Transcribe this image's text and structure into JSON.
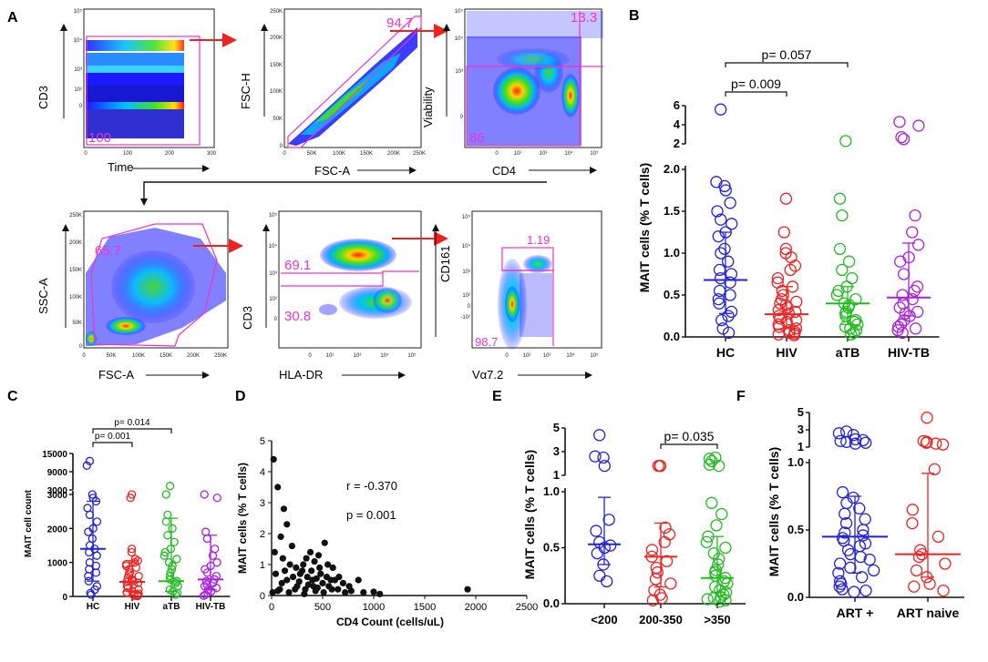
{
  "colors": {
    "hc": "#2222dd",
    "hiv": "#ee2222",
    "atb": "#22bb22",
    "hivtb": "#aa22dd",
    "gate": "#ee33cc",
    "arrow": "#ee2222"
  },
  "panel_letters": [
    "A",
    "B",
    "C",
    "D",
    "E",
    "F"
  ],
  "flow_plots": [
    {
      "id": "p1",
      "ylabel": "CD3",
      "xlabel": "Time",
      "gate_values": [
        "100"
      ],
      "yticks": [
        "10⁵",
        "10⁴",
        "10³",
        "10²",
        "0"
      ],
      "xticks": [
        "0",
        "100",
        "200",
        "300"
      ]
    },
    {
      "id": "p2",
      "ylabel": "FSC-H",
      "xlabel": "FSC-A",
      "gate_values": [
        "94.7"
      ],
      "yticks": [
        "250K",
        "200K",
        "150K",
        "100K",
        "50K",
        "0"
      ],
      "xticks": [
        "0",
        "50K",
        "100K",
        "150K",
        "200K",
        "250K"
      ]
    },
    {
      "id": "p3",
      "ylabel": "Viability",
      "xlabel": "CD4",
      "gate_values": [
        "13.3",
        "86"
      ],
      "yticks": [
        "10⁵",
        "10⁴",
        "10³",
        "0"
      ],
      "xticks": [
        "0",
        "10²",
        "10³",
        "10⁴",
        "10⁵"
      ]
    },
    {
      "id": "p4",
      "ylabel": "SSC-A",
      "xlabel": "FSC-A",
      "gate_values": [
        "65.7"
      ],
      "yticks": [
        "250K",
        "200K",
        "150K",
        "100K",
        "50K",
        "0"
      ],
      "xticks": [
        "0",
        "50K",
        "100K",
        "150K",
        "200K",
        "250K"
      ]
    },
    {
      "id": "p5",
      "ylabel": "CD3",
      "xlabel": "HLA-DR",
      "gate_values": [
        "69.1",
        "30.8"
      ],
      "yticks": [
        "10⁵",
        "10⁴",
        "10³",
        "10²",
        "0"
      ],
      "xticks": [
        "0",
        "10²",
        "10³",
        "10⁴",
        "10⁵"
      ]
    },
    {
      "id": "p6",
      "ylabel": "CD161",
      "xlabel": "Vα7.2",
      "gate_values": [
        "1.19",
        "98.7"
      ],
      "yticks": [
        "10⁵",
        "10⁴",
        "10³",
        "10²",
        "0",
        "-10²"
      ],
      "xticks": [
        "0",
        "10²",
        "10³",
        "10⁴",
        "10⁵"
      ]
    }
  ],
  "chart_data": [
    {
      "panel": "B",
      "type": "scatter",
      "ylabel": "MAIT cells (% T cells)",
      "categories": [
        "HC",
        "HIV",
        "aTB",
        "HIV-TB"
      ],
      "yticks_lower": [
        "0.0",
        "0.5",
        "1.0",
        "1.5",
        "2.0"
      ],
      "yticks_upper": [
        "2",
        "4",
        "6"
      ],
      "brackets": [
        {
          "from": "HC",
          "to": "HIV",
          "label": "p= 0.009"
        },
        {
          "from": "HC",
          "to": "aTB",
          "label": "p= 0.057"
        }
      ],
      "series": [
        {
          "name": "HC",
          "color": "#2222dd",
          "median": 0.68,
          "iqr": [
            0.28,
            1.25
          ],
          "values": [
            5.6,
            1.85,
            1.8,
            1.75,
            1.6,
            1.5,
            1.4,
            1.35,
            1.25,
            1.2,
            1.05,
            1.0,
            0.9,
            0.8,
            0.75,
            0.7,
            0.65,
            0.55,
            0.5,
            0.45,
            0.4,
            0.3,
            0.25,
            0.2,
            0.1,
            0.05
          ]
        },
        {
          "name": "HIV",
          "color": "#ee2222",
          "median": 0.27,
          "iqr": [
            0.1,
            0.6
          ],
          "values": [
            1.65,
            1.25,
            1.05,
            1.0,
            0.95,
            0.85,
            0.8,
            0.7,
            0.65,
            0.6,
            0.55,
            0.5,
            0.45,
            0.42,
            0.4,
            0.38,
            0.35,
            0.32,
            0.3,
            0.28,
            0.25,
            0.22,
            0.2,
            0.18,
            0.15,
            0.12,
            0.1,
            0.08,
            0.06,
            0.05,
            0.04,
            0.03,
            0.02
          ]
        },
        {
          "name": "aTB",
          "color": "#22bb22",
          "median": 0.4,
          "iqr": [
            0.15,
            0.6
          ],
          "values": [
            2.3,
            1.65,
            1.45,
            1.05,
            0.9,
            0.8,
            0.7,
            0.6,
            0.55,
            0.5,
            0.45,
            0.4,
            0.38,
            0.35,
            0.3,
            0.28,
            0.25,
            0.2,
            0.18,
            0.15,
            0.12,
            0.1,
            0.08,
            0.05,
            0.03
          ]
        },
        {
          "name": "HIV-TB",
          "color": "#aa22dd",
          "median": 0.47,
          "iqr": [
            0.25,
            1.12
          ],
          "values": [
            4.3,
            3.9,
            2.7,
            2.5,
            1.45,
            1.25,
            1.1,
            0.95,
            0.9,
            0.75,
            0.6,
            0.55,
            0.5,
            0.45,
            0.4,
            0.35,
            0.3,
            0.28,
            0.25,
            0.2,
            0.15,
            0.12,
            0.1,
            0.08,
            0.05
          ]
        }
      ]
    },
    {
      "panel": "C",
      "type": "scatter",
      "ylabel": "MAIT cell count",
      "categories": [
        "HC",
        "HIV",
        "aTB",
        "HIV-TB"
      ],
      "yticks_lower": [
        "0",
        "1000",
        "2000",
        "3000"
      ],
      "yticks_upper": [
        "3000",
        "9000",
        "15000"
      ],
      "brackets": [
        {
          "from": "HC",
          "to": "HIV",
          "label": "p= 0.001"
        },
        {
          "from": "HC",
          "to": "aTB",
          "label": "p= 0.014"
        }
      ],
      "series": [
        {
          "name": "HC",
          "median": 1400,
          "iqr": [
            450,
            2800
          ],
          "values": [
            12500,
            11000,
            3000,
            2900,
            2800,
            2600,
            2400,
            2200,
            2000,
            1900,
            1700,
            1500,
            1400,
            1300,
            1200,
            1000,
            900,
            800,
            700,
            600,
            450,
            300,
            200,
            100,
            50
          ]
        },
        {
          "name": "HIV",
          "median": 430,
          "iqr": [
            150,
            1050
          ],
          "values": [
            3000,
            2900,
            1400,
            1300,
            1100,
            1050,
            1000,
            950,
            900,
            850,
            800,
            700,
            650,
            600,
            550,
            500,
            450,
            430,
            400,
            350,
            300,
            250,
            200,
            150,
            120,
            100,
            80,
            60,
            40,
            20,
            10
          ]
        },
        {
          "name": "aTB",
          "median": 450,
          "iqr": [
            150,
            2300
          ],
          "values": [
            4300,
            3000,
            2400,
            2200,
            2000,
            1800,
            1600,
            1400,
            1300,
            1200,
            1100,
            1000,
            900,
            800,
            700,
            600,
            500,
            450,
            400,
            300,
            200,
            150,
            100,
            50
          ]
        },
        {
          "name": "HIV-TB",
          "median": 500,
          "iqr": [
            200,
            1800
          ],
          "values": [
            3000,
            2900,
            1900,
            1700,
            1400,
            1200,
            1000,
            900,
            800,
            700,
            600,
            500,
            450,
            400,
            350,
            300,
            250,
            200,
            150,
            100,
            50,
            20
          ]
        }
      ]
    },
    {
      "panel": "D",
      "type": "scatter",
      "xlabel": "CD4 Count (cells/uL)",
      "ylabel": "MAIT cells (% T cells)",
      "xlim": [
        0,
        2500
      ],
      "ylim": [
        0,
        5
      ],
      "xticks": [
        "0",
        "500",
        "1000",
        "1500",
        "2000",
        "2500"
      ],
      "yticks": [
        "0",
        "1",
        "2",
        "3",
        "4",
        "5"
      ],
      "annotation_r": "r = -0.370",
      "annotation_p": "p = 0.001",
      "points": [
        [
          20,
          4.4
        ],
        [
          60,
          3.5
        ],
        [
          120,
          2.8
        ],
        [
          150,
          2.3
        ],
        [
          90,
          1.9
        ],
        [
          200,
          1.6
        ],
        [
          30,
          1.4
        ],
        [
          110,
          1.2
        ],
        [
          180,
          1.0
        ],
        [
          240,
          0.9
        ],
        [
          300,
          0.8
        ],
        [
          380,
          1.4
        ],
        [
          420,
          1.1
        ],
        [
          460,
          1.3
        ],
        [
          520,
          1.7
        ],
        [
          550,
          1.0
        ],
        [
          350,
          0.6
        ],
        [
          400,
          0.5
        ],
        [
          480,
          0.7
        ],
        [
          600,
          0.9
        ],
        [
          620,
          0.5
        ],
        [
          700,
          0.4
        ],
        [
          150,
          0.5
        ],
        [
          250,
          0.3
        ],
        [
          330,
          0.2
        ],
        [
          450,
          0.25
        ],
        [
          500,
          0.4
        ],
        [
          560,
          0.3
        ],
        [
          650,
          0.2
        ],
        [
          780,
          0.15
        ],
        [
          850,
          0.5
        ],
        [
          900,
          0.1
        ],
        [
          1000,
          0.12
        ],
        [
          1060,
          0.05
        ],
        [
          1920,
          0.2
        ],
        [
          80,
          0.2
        ],
        [
          130,
          0.8
        ],
        [
          210,
          0.6
        ],
        [
          270,
          0.45
        ],
        [
          310,
          1.0
        ],
        [
          360,
          0.35
        ],
        [
          430,
          0.15
        ],
        [
          470,
          0.9
        ],
        [
          540,
          0.6
        ],
        [
          590,
          0.2
        ],
        [
          40,
          0.7
        ],
        [
          100,
          0.4
        ],
        [
          170,
          0.1
        ],
        [
          230,
          0.2
        ],
        [
          280,
          0.7
        ],
        [
          320,
          0.05
        ],
        [
          390,
          0.8
        ],
        [
          410,
          0.3
        ],
        [
          510,
          0.1
        ],
        [
          580,
          0.5
        ],
        [
          660,
          0.6
        ],
        [
          720,
          0.1
        ],
        [
          760,
          0.3
        ],
        [
          10,
          0.1
        ],
        [
          60,
          0.15
        ],
        [
          340,
          1.2
        ],
        [
          440,
          0.55
        ]
      ]
    },
    {
      "panel": "E",
      "type": "scatter",
      "ylabel": "MAIT cells (% T cells)",
      "categories": [
        "<200",
        "200-350",
        ">350"
      ],
      "yticks_lower": [
        "0.0",
        "0.5",
        "1.0"
      ],
      "yticks_upper": [
        "1",
        "3",
        "5"
      ],
      "brackets": [
        {
          "from": "200-350",
          "to": ">350",
          "label": "p= 0.035"
        }
      ],
      "series": [
        {
          "name": "<200",
          "color": "#2222dd",
          "median": 0.53,
          "iqr": [
            0.35,
            0.95
          ],
          "values": [
            4.4,
            2.6,
            2.5,
            1.8,
            0.75,
            0.65,
            0.55,
            0.52,
            0.5,
            0.45,
            0.35,
            0.25,
            0.2
          ]
        },
        {
          "name": "200-350",
          "color": "#ee2222",
          "median": 0.42,
          "iqr": [
            0.15,
            0.72
          ],
          "values": [
            1.8,
            1.8,
            1.8,
            1.8,
            0.68,
            0.62,
            0.55,
            0.48,
            0.42,
            0.38,
            0.32,
            0.28,
            0.22,
            0.18,
            0.12,
            0.08,
            0.05,
            0.03
          ]
        },
        {
          "name": ">350",
          "color": "#22bb22",
          "median": 0.23,
          "iqr": [
            0.1,
            0.6
          ],
          "values": [
            2.5,
            2.4,
            2.2,
            1.9,
            1.8,
            0.9,
            0.8,
            0.7,
            0.6,
            0.55,
            0.5,
            0.45,
            0.4,
            0.35,
            0.3,
            0.28,
            0.25,
            0.23,
            0.2,
            0.18,
            0.15,
            0.12,
            0.1,
            0.08,
            0.06,
            0.05,
            0.04,
            0.03,
            0.02
          ]
        }
      ]
    },
    {
      "panel": "F",
      "type": "scatter",
      "ylabel": "MAIT cells (% T cells)",
      "categories": [
        "ART +",
        "ART naive"
      ],
      "yticks_lower": [
        "0.0",
        "0.5",
        "1.0"
      ],
      "yticks_upper": [
        "1",
        "3",
        "5"
      ],
      "series": [
        {
          "name": "ART +",
          "color": "#2222dd",
          "median": 0.45,
          "iqr": [
            0.18,
            0.75
          ],
          "values": [
            2.8,
            2.6,
            2.4,
            1.9,
            1.8,
            1.7,
            1.6,
            1.5,
            1.4,
            0.78,
            0.74,
            0.7,
            0.66,
            0.62,
            0.58,
            0.55,
            0.5,
            0.48,
            0.46,
            0.44,
            0.42,
            0.4,
            0.38,
            0.35,
            0.32,
            0.3,
            0.28,
            0.25,
            0.22,
            0.2,
            0.18,
            0.15,
            0.12,
            0.1,
            0.08,
            0.06,
            0.05,
            0.04
          ]
        },
        {
          "name": "ART naive",
          "color": "#ee2222",
          "median": 0.32,
          "iqr": [
            0.15,
            0.92
          ],
          "values": [
            4.4,
            1.7,
            1.6,
            1.5,
            1.4,
            1.3,
            0.95,
            0.65,
            0.55,
            0.45,
            0.35,
            0.32,
            0.3,
            0.25,
            0.2,
            0.15,
            0.1,
            0.08,
            0.05
          ]
        }
      ]
    }
  ]
}
